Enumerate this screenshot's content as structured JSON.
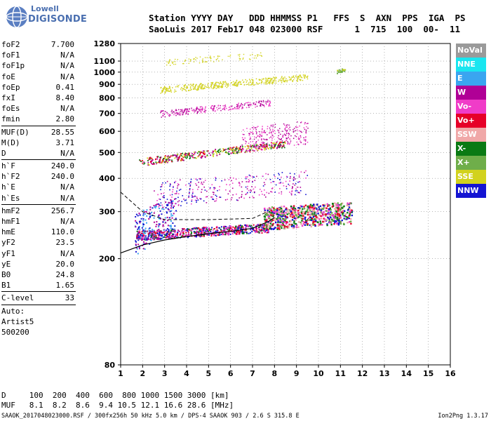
{
  "logo": {
    "top": "Lowell",
    "bottom": "DIGISONDE"
  },
  "header": {
    "line1": "Station YYYY DAY   DDD HHMMSS P1   FFS  S  AXN  PPS  IGA  PS",
    "line2": "SaoLuis 2017 Feb17 048 023000 RSF      1  715  100  00-  11"
  },
  "params": [
    {
      "label": "foF2",
      "value": "7.700"
    },
    {
      "label": "foF1",
      "value": "N/A"
    },
    {
      "label": "foF1p",
      "value": "N/A"
    },
    {
      "label": "foE",
      "value": "N/A"
    },
    {
      "label": "foEp",
      "value": "0.41"
    },
    {
      "label": "fxI",
      "value": "8.40"
    },
    {
      "label": "foEs",
      "value": "N/A"
    },
    {
      "label": "fmin",
      "value": "2.80"
    },
    {
      "sep": true
    },
    {
      "label": "MUF(D)",
      "value": "28.55"
    },
    {
      "label": "M(D)",
      "value": "3.71"
    },
    {
      "label": "D",
      "value": "N/A"
    },
    {
      "sep": true
    },
    {
      "label": "h`F",
      "value": "240.0"
    },
    {
      "label": "h`F2",
      "value": "240.0"
    },
    {
      "label": "h`E",
      "value": "N/A"
    },
    {
      "label": "h`Es",
      "value": "N/A"
    },
    {
      "sep": true
    },
    {
      "label": "hmF2",
      "value": "256.7"
    },
    {
      "label": "hmF1",
      "value": "N/A"
    },
    {
      "label": "hmE",
      "value": "110.0"
    },
    {
      "label": "yF2",
      "value": "23.5"
    },
    {
      "label": "yF1",
      "value": "N/A"
    },
    {
      "label": "yE",
      "value": "20.0"
    },
    {
      "label": "B0",
      "value": "24.8"
    },
    {
      "label": "B1",
      "value": "1.65"
    },
    {
      "sep": true
    },
    {
      "label": "C-level",
      "value": "33"
    },
    {
      "sep": true
    },
    {
      "label": "Auto:",
      "value": ""
    },
    {
      "label": "Artist5",
      "value": ""
    },
    {
      "label": "500200",
      "value": ""
    }
  ],
  "legend": [
    {
      "label": "NoVal",
      "color": "#9a9a9a"
    },
    {
      "label": "NNE",
      "color": "#19e6f0"
    },
    {
      "label": "E",
      "color": "#3aa5f0"
    },
    {
      "label": "W",
      "color": "#b00096"
    },
    {
      "label": "Vo-",
      "color": "#f03cc8"
    },
    {
      "label": "Vo+",
      "color": "#e60028"
    },
    {
      "label": "SSW",
      "color": "#f0a8a8"
    },
    {
      "label": "X-",
      "color": "#0a7a14"
    },
    {
      "label": "X+",
      "color": "#6fae4a"
    },
    {
      "label": "SSE",
      "color": "#d2d21e"
    },
    {
      "label": "NNW",
      "color": "#1414d2"
    }
  ],
  "chart_data": {
    "type": "scatter",
    "title": "",
    "xlabel": "",
    "ylabel": "",
    "xlim": [
      1,
      16
    ],
    "ylim": [
      80,
      1280
    ],
    "y_scale": "log",
    "x_ticks": [
      1,
      2,
      3,
      4,
      5,
      6,
      7,
      8,
      9,
      10,
      11,
      12,
      13,
      14,
      15,
      16
    ],
    "y_ticks": [
      80,
      200,
      300,
      400,
      500,
      600,
      700,
      800,
      900,
      1000,
      1100,
      1280
    ],
    "grid": "dotted",
    "profile_line": [
      [
        1,
        210
      ],
      [
        2,
        225
      ],
      [
        3,
        235
      ],
      [
        4,
        242
      ],
      [
        5,
        248
      ],
      [
        6,
        253
      ],
      [
        7,
        260
      ],
      [
        7.7,
        275
      ],
      [
        8,
        285
      ]
    ],
    "dashed_line": [
      [
        1,
        355
      ],
      [
        2,
        300
      ],
      [
        3,
        280
      ],
      [
        5,
        280
      ],
      [
        7,
        283
      ],
      [
        7.7,
        300
      ]
    ]
  },
  "footer": {
    "d_row": "D     100  200  400  600  800 1000 1500 3000 [km]",
    "muf_row": "MUF   8.1  8.2  8.6  9.4 10.5 12.1 16.6 28.6 [MHz]",
    "info": "SAAOK_2017048023000.RSF / 300fx256h 50 kHz 5.0 km / DPS-4 SAAOK 903 / 2.6 S 315.8 E",
    "version": "Ion2Png 1.3.17"
  }
}
